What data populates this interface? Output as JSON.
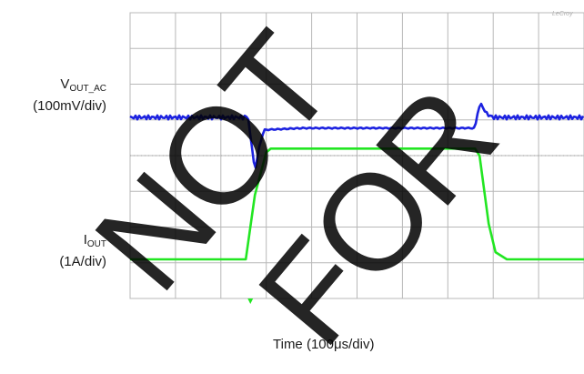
{
  "labels": {
    "vout_main": "V",
    "vout_sub": "OUT_AC",
    "vout_scale": "(100mV/div)",
    "iout_main": "I",
    "iout_sub": "OUT",
    "iout_scale": "(1A/div)",
    "xlabel": "Time (100μs/div)",
    "logo": "LeCroy"
  },
  "watermark": {
    "left": "NOT",
    "right": "FOR"
  },
  "colors": {
    "vout": "#1c22e0",
    "iout": "#22e622",
    "grid": "#b8b8b8",
    "bg": "#ffffff",
    "watermark": "#000000"
  },
  "chart_data": {
    "type": "line",
    "title": "",
    "xlabel": "Time (100μs/div)",
    "x_unit": "μs",
    "grid": true,
    "xlim": [
      0,
      1000
    ],
    "series": [
      {
        "name": "VOUT_AC",
        "unit": "mV",
        "scale_per_div": 100,
        "points": [
          [
            0,
            0
          ],
          [
            260,
            0
          ],
          [
            265,
            -50
          ],
          [
            275,
            -150
          ],
          [
            285,
            -80
          ],
          [
            295,
            -35
          ],
          [
            380,
            -30
          ],
          [
            760,
            -30
          ],
          [
            765,
            10
          ],
          [
            772,
            40
          ],
          [
            785,
            10
          ],
          [
            800,
            0
          ],
          [
            1000,
            0
          ]
        ]
      },
      {
        "name": "IOUT",
        "unit": "A",
        "scale_per_div": 1,
        "points": [
          [
            0,
            0
          ],
          [
            255,
            0
          ],
          [
            275,
            1.8
          ],
          [
            300,
            3.0
          ],
          [
            310,
            3.1
          ],
          [
            760,
            3.1
          ],
          [
            770,
            2.9
          ],
          [
            790,
            1.0
          ],
          [
            805,
            0.2
          ],
          [
            830,
            0
          ],
          [
            1000,
            0
          ]
        ]
      }
    ]
  }
}
